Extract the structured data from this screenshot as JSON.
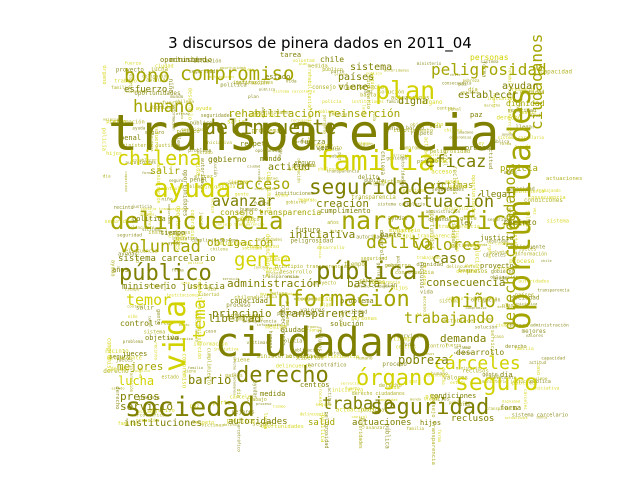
{
  "title": "3 discursos de pinera dados en 2011_04",
  "colors": {
    "dark": "#7f7f00",
    "light": "#d2d200",
    "mid": "#a5a500",
    "pale": "#e8e864"
  },
  "words": [
    "transparencia",
    "ciudadano",
    "oportunidades",
    "vida",
    "familia",
    "narcotráfico",
    "delincuencia",
    "sociedad",
    "seguridades",
    "ayuda",
    "público",
    "pública",
    "información",
    "plan",
    "delincuente",
    "compromiso",
    "chilena",
    "seguridad",
    "seguro",
    "derecho",
    "órgano",
    "cárceles",
    "humano",
    "bono",
    "peligrosidad",
    "ciudadanos",
    "derecho ciudadanos",
    "acceso",
    "eficaz",
    "avanzar",
    "delito",
    "valores",
    "voluntad",
    "gente",
    "actuación",
    "trabajando",
    "niño",
    "tema",
    "trabajo",
    "temor",
    "caso",
    "consecuencia",
    "demanda",
    "pobreza",
    "barrio",
    "lucha",
    "servicio",
    "libertad",
    "administración",
    "principio transparencia",
    "basta",
    "creación",
    "obligación",
    "iniciativa",
    "mejores",
    "presos",
    "instituciones",
    "autoridades",
    "salud",
    "actuaciones",
    "reclusos",
    "sistema",
    "países",
    "esfuerzo",
    "digna",
    "viene",
    "rehabilitación reinserción",
    "ayudar",
    "establecer",
    "policía",
    "sistema carcelario",
    "ministerio justicia",
    "consejo transparencia",
    "cumplimiento",
    "dignidad",
    "víctimas",
    "actitud",
    "salir",
    "llegar",
    "ministerio",
    "estado",
    "personas",
    "chile",
    "gobierno",
    "ley",
    "política",
    "mundo",
    "justicia",
    "recinto",
    "penal",
    "respeto",
    "proceso",
    "fuerza",
    "control",
    "desarrollo",
    "capacidad",
    "problema",
    "solución",
    "proyecto",
    "objetivo",
    "ciudad",
    "centros",
    "condiciones",
    "oportunidad",
    "futuro",
    "paz",
    "tarea",
    "tiempo",
    "vez",
    "años",
    "día",
    "parte",
    "forma",
    "medida",
    "hijos",
    "jueces"
  ]
}
